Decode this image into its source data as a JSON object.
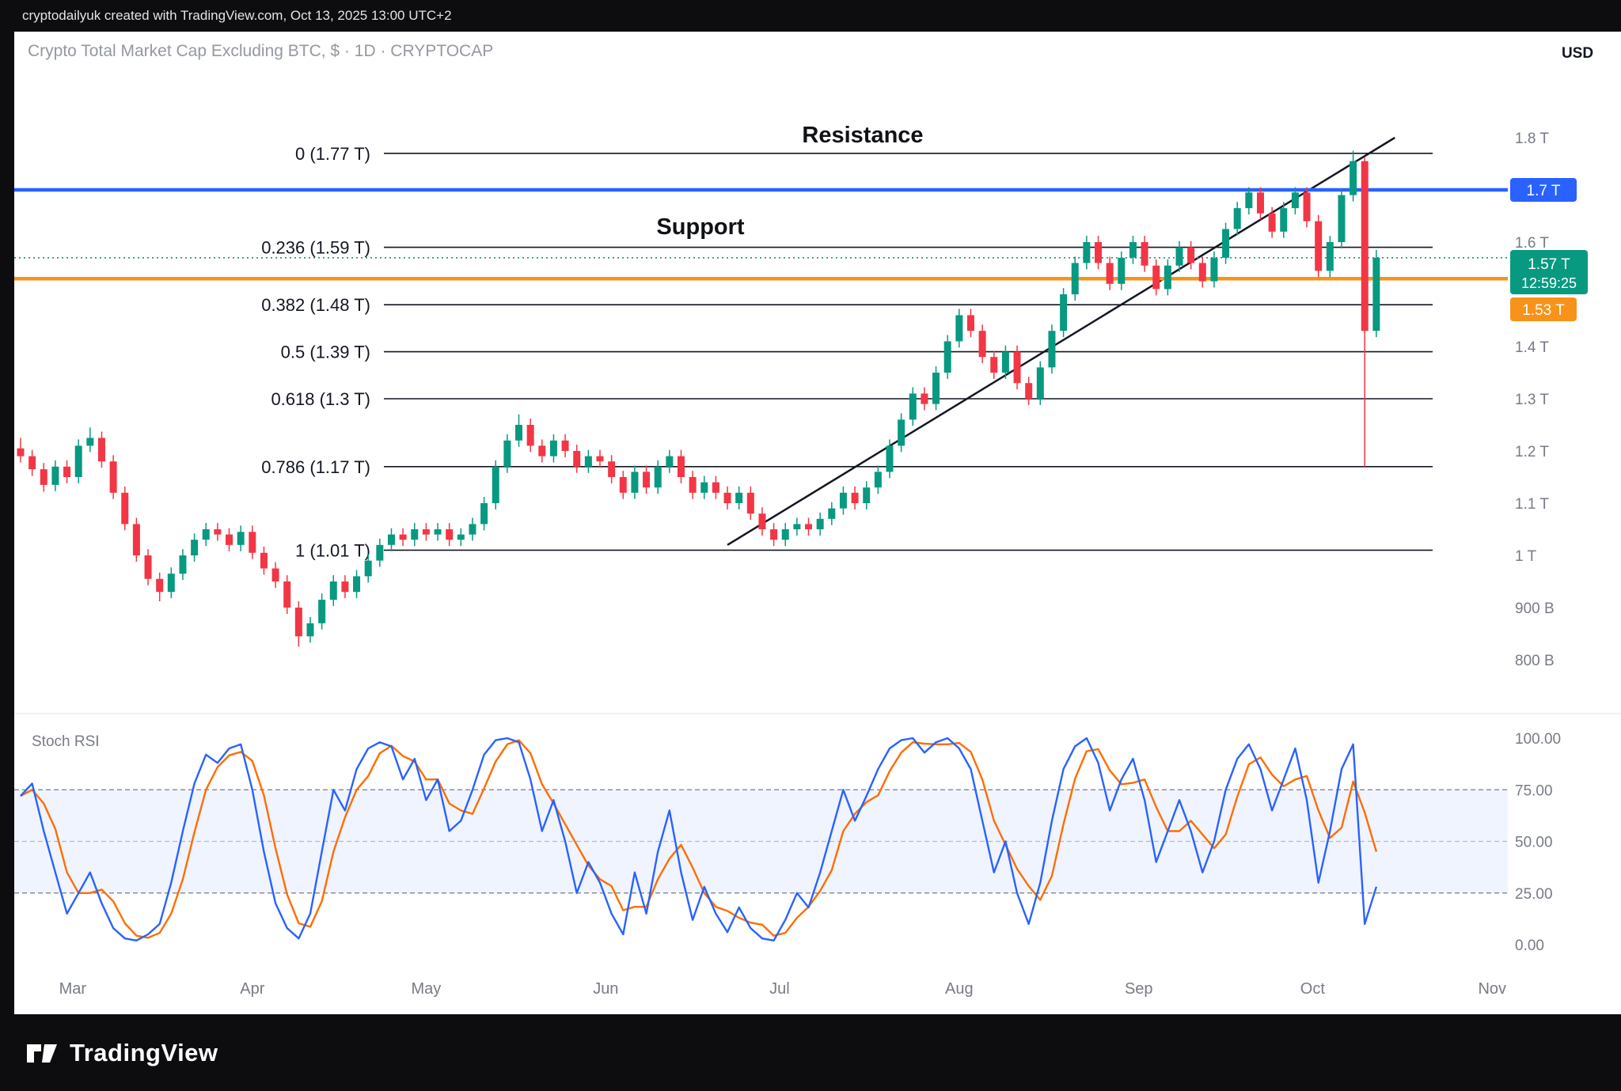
{
  "topbar": {
    "attribution": "cryptodailyuk created with TradingView.com, Oct 13, 2025 13:00 UTC+2"
  },
  "header": {
    "title": "Crypto Total Market Cap Excluding BTC, $ · 1D · CRYPTOCAP",
    "currency": "USD"
  },
  "price_pane": {
    "resistance": {
      "label": "Resistance",
      "price": 1.7,
      "color": "#2962ff"
    },
    "support": {
      "label": "Support",
      "price": 1.53,
      "color": "#f7931a"
    },
    "last": {
      "price": 1.57,
      "label": "1.57 T",
      "countdown": "12:59:25",
      "color": "#089981"
    },
    "axis_ticks": [
      {
        "label": "1.8 T",
        "value": 1.8
      },
      {
        "label": "1.6 T",
        "value": 1.6
      },
      {
        "label": "1.4 T",
        "value": 1.4
      },
      {
        "label": "1.3 T",
        "value": 1.3
      },
      {
        "label": "1.2 T",
        "value": 1.2
      },
      {
        "label": "1.1 T",
        "value": 1.1
      },
      {
        "label": "1 T",
        "value": 1.0
      },
      {
        "label": "900 B",
        "value": 0.9
      },
      {
        "label": "800 B",
        "value": 0.8
      }
    ],
    "badges": [
      {
        "label": "1.7 T",
        "value": 1.7,
        "bg": "#2962ff"
      },
      {
        "label": "1.57 T",
        "sub": "12:59:25",
        "value": 1.57,
        "bg": "#089981",
        "two_line": true
      },
      {
        "label": "1.53 T",
        "value": 1.53,
        "bg": "#f7931a"
      }
    ]
  },
  "time_axis": {
    "months": [
      {
        "label": "Mar",
        "index": 4.5
      },
      {
        "label": "Apr",
        "index": 20
      },
      {
        "label": "May",
        "index": 35
      },
      {
        "label": "Jun",
        "index": 50.5
      },
      {
        "label": "Jul",
        "index": 65.5
      },
      {
        "label": "Aug",
        "index": 81
      },
      {
        "label": "Sep",
        "index": 96.5
      },
      {
        "label": "Oct",
        "index": 111.5
      },
      {
        "label": "Nov",
        "index": 127
      }
    ]
  },
  "stoch_pane": {
    "label": "Stoch RSI",
    "ticks": [
      {
        "label": "100.00",
        "value": 100
      },
      {
        "label": "75.00",
        "value": 75
      },
      {
        "label": "50.00",
        "value": 50
      },
      {
        "label": "25.00",
        "value": 25
      },
      {
        "label": "0.00",
        "value": 0
      }
    ],
    "upper_band": 75,
    "lower_band": 25
  },
  "footer": {
    "brand": "TradingView"
  },
  "chart_data": [
    {
      "type": "candlestick",
      "title": "Crypto Total Market Cap Excluding BTC, $ · 1D · CRYPTOCAP",
      "symbol": "CRYPTOCAP",
      "timeframe": "1D",
      "unit": "trillion USD",
      "x_start": "2025-02-20",
      "x_step_days": 2,
      "x_end": "2025-10-13",
      "ylim": [
        0.78,
        1.86
      ],
      "up_color": "#089981",
      "down_color": "#f23645",
      "resistance": 1.7,
      "support": 1.53,
      "last_price": 1.57,
      "fib_levels": [
        {
          "label": "0 (1.77 T)",
          "value": 1.77
        },
        {
          "label": "0.236 (1.59 T)",
          "value": 1.59
        },
        {
          "label": "0.382 (1.48 T)",
          "value": 1.48
        },
        {
          "label": "0.5 (1.39 T)",
          "value": 1.39
        },
        {
          "label": "0.618 (1.3 T)",
          "value": 1.3
        },
        {
          "label": "0.786 (1.17 T)",
          "value": 1.17
        },
        {
          "label": "1 (1.01 T)",
          "value": 1.01
        }
      ],
      "trendline": {
        "i1": 61,
        "p1": 1.02,
        "i2": 118.6,
        "p2": 1.8
      },
      "ohlc": [
        [
          1.205,
          1.225,
          1.178,
          1.19
        ],
        [
          1.19,
          1.202,
          1.152,
          1.165
        ],
        [
          1.165,
          1.177,
          1.122,
          1.135
        ],
        [
          1.135,
          1.182,
          1.123,
          1.17
        ],
        [
          1.17,
          1.182,
          1.138,
          1.15
        ],
        [
          1.15,
          1.222,
          1.138,
          1.21
        ],
        [
          1.21,
          1.245,
          1.198,
          1.225
        ],
        [
          1.225,
          1.237,
          1.168,
          1.18
        ],
        [
          1.18,
          1.192,
          1.108,
          1.12
        ],
        [
          1.12,
          1.132,
          1.048,
          1.06
        ],
        [
          1.06,
          1.072,
          0.988,
          1.0
        ],
        [
          1.0,
          1.012,
          0.943,
          0.955
        ],
        [
          0.955,
          0.967,
          0.912,
          0.93
        ],
        [
          0.93,
          0.977,
          0.918,
          0.965
        ],
        [
          0.965,
          1.012,
          0.953,
          1.0
        ],
        [
          1.0,
          1.042,
          0.988,
          1.03
        ],
        [
          1.03,
          1.062,
          1.018,
          1.05
        ],
        [
          1.05,
          1.062,
          1.028,
          1.04
        ],
        [
          1.04,
          1.052,
          1.008,
          1.02
        ],
        [
          1.02,
          1.057,
          1.008,
          1.045
        ],
        [
          1.045,
          1.057,
          0.993,
          1.005
        ],
        [
          1.005,
          1.017,
          0.963,
          0.975
        ],
        [
          0.975,
          0.987,
          0.938,
          0.95
        ],
        [
          0.95,
          0.962,
          0.888,
          0.9
        ],
        [
          0.9,
          0.912,
          0.825,
          0.845
        ],
        [
          0.845,
          0.882,
          0.833,
          0.87
        ],
        [
          0.87,
          0.927,
          0.858,
          0.915
        ],
        [
          0.915,
          0.962,
          0.903,
          0.95
        ],
        [
          0.95,
          0.962,
          0.918,
          0.93
        ],
        [
          0.93,
          0.972,
          0.918,
          0.96
        ],
        [
          0.96,
          1.002,
          0.948,
          0.99
        ],
        [
          0.99,
          1.032,
          0.978,
          1.02
        ],
        [
          1.02,
          1.052,
          1.008,
          1.04
        ],
        [
          1.04,
          1.052,
          1.018,
          1.03
        ],
        [
          1.03,
          1.062,
          1.018,
          1.05
        ],
        [
          1.05,
          1.062,
          1.028,
          1.04
        ],
        [
          1.04,
          1.062,
          1.028,
          1.05
        ],
        [
          1.05,
          1.062,
          1.018,
          1.03
        ],
        [
          1.03,
          1.052,
          1.018,
          1.04
        ],
        [
          1.04,
          1.072,
          1.028,
          1.06
        ],
        [
          1.06,
          1.112,
          1.048,
          1.1
        ],
        [
          1.1,
          1.182,
          1.088,
          1.17
        ],
        [
          1.17,
          1.232,
          1.158,
          1.22
        ],
        [
          1.22,
          1.27,
          1.208,
          1.25
        ],
        [
          1.25,
          1.262,
          1.198,
          1.21
        ],
        [
          1.21,
          1.222,
          1.178,
          1.19
        ],
        [
          1.19,
          1.232,
          1.178,
          1.22
        ],
        [
          1.22,
          1.232,
          1.188,
          1.2
        ],
        [
          1.2,
          1.212,
          1.158,
          1.17
        ],
        [
          1.17,
          1.202,
          1.158,
          1.19
        ],
        [
          1.19,
          1.202,
          1.168,
          1.18
        ],
        [
          1.18,
          1.192,
          1.138,
          1.15
        ],
        [
          1.15,
          1.162,
          1.108,
          1.12
        ],
        [
          1.12,
          1.172,
          1.108,
          1.16
        ],
        [
          1.16,
          1.172,
          1.118,
          1.13
        ],
        [
          1.13,
          1.182,
          1.118,
          1.17
        ],
        [
          1.17,
          1.202,
          1.158,
          1.19
        ],
        [
          1.19,
          1.202,
          1.138,
          1.15
        ],
        [
          1.15,
          1.162,
          1.108,
          1.12
        ],
        [
          1.12,
          1.152,
          1.108,
          1.14
        ],
        [
          1.14,
          1.152,
          1.108,
          1.12
        ],
        [
          1.12,
          1.132,
          1.088,
          1.1
        ],
        [
          1.1,
          1.132,
          1.088,
          1.12
        ],
        [
          1.12,
          1.132,
          1.068,
          1.08
        ],
        [
          1.08,
          1.092,
          1.038,
          1.05
        ],
        [
          1.05,
          1.062,
          1.018,
          1.03
        ],
        [
          1.03,
          1.062,
          1.018,
          1.05
        ],
        [
          1.05,
          1.072,
          1.038,
          1.06
        ],
        [
          1.06,
          1.072,
          1.038,
          1.05
        ],
        [
          1.05,
          1.082,
          1.038,
          1.07
        ],
        [
          1.07,
          1.102,
          1.058,
          1.09
        ],
        [
          1.09,
          1.132,
          1.078,
          1.12
        ],
        [
          1.12,
          1.132,
          1.088,
          1.1
        ],
        [
          1.1,
          1.142,
          1.088,
          1.13
        ],
        [
          1.13,
          1.172,
          1.118,
          1.16
        ],
        [
          1.16,
          1.222,
          1.148,
          1.21
        ],
        [
          1.21,
          1.272,
          1.198,
          1.26
        ],
        [
          1.26,
          1.322,
          1.248,
          1.31
        ],
        [
          1.31,
          1.322,
          1.278,
          1.29
        ],
        [
          1.29,
          1.362,
          1.278,
          1.35
        ],
        [
          1.35,
          1.422,
          1.338,
          1.41
        ],
        [
          1.41,
          1.472,
          1.398,
          1.46
        ],
        [
          1.46,
          1.472,
          1.418,
          1.43
        ],
        [
          1.43,
          1.442,
          1.368,
          1.38
        ],
        [
          1.38,
          1.392,
          1.338,
          1.35
        ],
        [
          1.35,
          1.402,
          1.338,
          1.39
        ],
        [
          1.39,
          1.402,
          1.318,
          1.33
        ],
        [
          1.33,
          1.342,
          1.288,
          1.3
        ],
        [
          1.3,
          1.372,
          1.288,
          1.36
        ],
        [
          1.36,
          1.442,
          1.348,
          1.43
        ],
        [
          1.43,
          1.512,
          1.418,
          1.5
        ],
        [
          1.5,
          1.572,
          1.488,
          1.56
        ],
        [
          1.56,
          1.612,
          1.548,
          1.6
        ],
        [
          1.6,
          1.612,
          1.548,
          1.56
        ],
        [
          1.56,
          1.572,
          1.508,
          1.52
        ],
        [
          1.52,
          1.582,
          1.508,
          1.57
        ],
        [
          1.57,
          1.612,
          1.558,
          1.6
        ],
        [
          1.6,
          1.612,
          1.543,
          1.555
        ],
        [
          1.555,
          1.567,
          1.498,
          1.51
        ],
        [
          1.51,
          1.567,
          1.498,
          1.555
        ],
        [
          1.555,
          1.602,
          1.543,
          1.59
        ],
        [
          1.59,
          1.602,
          1.548,
          1.56
        ],
        [
          1.56,
          1.572,
          1.513,
          1.525
        ],
        [
          1.525,
          1.582,
          1.513,
          1.57
        ],
        [
          1.57,
          1.637,
          1.558,
          1.625
        ],
        [
          1.625,
          1.677,
          1.613,
          1.665
        ],
        [
          1.665,
          1.705,
          1.653,
          1.695
        ],
        [
          1.695,
          1.705,
          1.643,
          1.655
        ],
        [
          1.655,
          1.667,
          1.608,
          1.62
        ],
        [
          1.62,
          1.677,
          1.608,
          1.665
        ],
        [
          1.665,
          1.705,
          1.653,
          1.695
        ],
        [
          1.695,
          1.705,
          1.628,
          1.64
        ],
        [
          1.64,
          1.652,
          1.533,
          1.545
        ],
        [
          1.545,
          1.612,
          1.533,
          1.6
        ],
        [
          1.6,
          1.702,
          1.588,
          1.69
        ],
        [
          1.69,
          1.775,
          1.678,
          1.755
        ],
        [
          1.755,
          1.762,
          1.17,
          1.43
        ],
        [
          1.43,
          1.585,
          1.418,
          1.57
        ]
      ]
    },
    {
      "type": "line",
      "title": "Stoch RSI",
      "ylim": [
        0,
        100
      ],
      "upper_band": 75,
      "lower_band": 25,
      "mid": 50,
      "series": [
        {
          "name": "%K",
          "color": "#2962ff",
          "values": [
            72,
            78,
            55,
            35,
            15,
            25,
            35,
            20,
            8,
            3,
            2,
            5,
            10,
            30,
            55,
            78,
            92,
            88,
            95,
            97,
            75,
            45,
            20,
            8,
            3,
            15,
            45,
            75,
            65,
            85,
            95,
            98,
            96,
            80,
            90,
            70,
            80,
            55,
            60,
            75,
            92,
            99,
            100,
            98,
            80,
            55,
            70,
            50,
            25,
            40,
            30,
            15,
            5,
            35,
            15,
            45,
            65,
            35,
            12,
            28,
            15,
            6,
            18,
            8,
            3,
            2,
            12,
            25,
            18,
            35,
            55,
            75,
            60,
            72,
            85,
            95,
            99,
            100,
            93,
            98,
            100,
            95,
            85,
            60,
            35,
            50,
            25,
            10,
            30,
            60,
            85,
            96,
            100,
            88,
            65,
            80,
            90,
            70,
            40,
            55,
            70,
            55,
            35,
            50,
            75,
            90,
            97,
            85,
            65,
            80,
            95,
            70,
            30,
            55,
            85,
            97,
            10,
            28
          ]
        },
        {
          "name": "%D",
          "color": "#ff6d00",
          "derived": "sma3 of %K"
        }
      ]
    }
  ]
}
